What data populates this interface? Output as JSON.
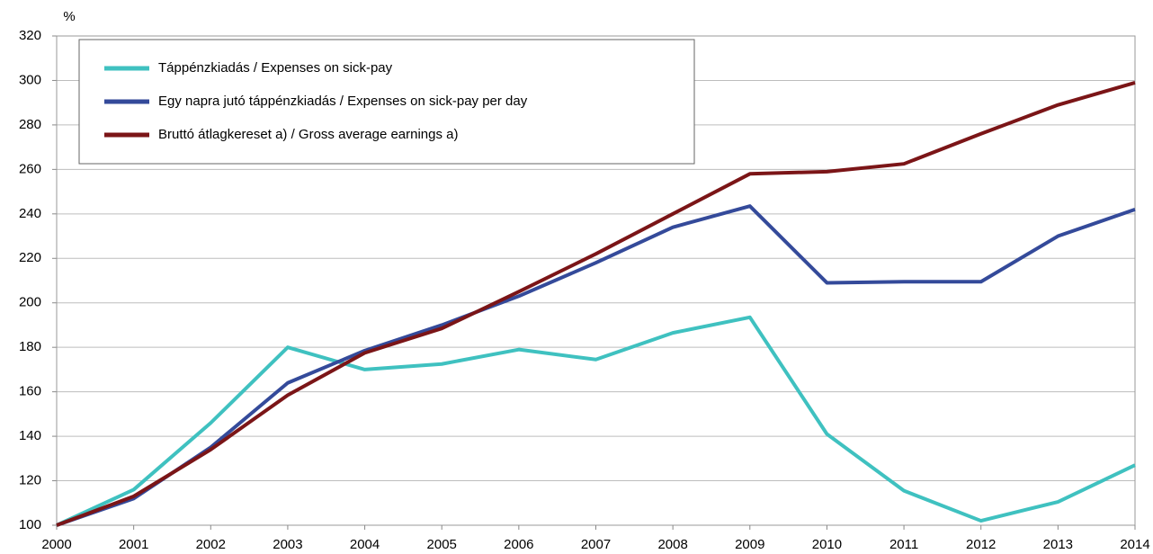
{
  "chart_data": {
    "type": "line",
    "y_label": "%",
    "x": [
      2000,
      2001,
      2002,
      2003,
      2004,
      2005,
      2006,
      2007,
      2008,
      2009,
      2010,
      2011,
      2012,
      2013,
      2014
    ],
    "xlim": [
      2000,
      2014
    ],
    "xticks": [
      2000,
      2001,
      2002,
      2003,
      2004,
      2005,
      2006,
      2007,
      2008,
      2009,
      2010,
      2011,
      2012,
      2013,
      2014
    ],
    "ylim": [
      100,
      320
    ],
    "yticks": [
      100,
      120,
      140,
      160,
      180,
      200,
      220,
      240,
      260,
      280,
      300,
      320
    ],
    "grid": true,
    "legend": "upper left",
    "series": [
      {
        "name": "Táppénzkiadás / Expenses on sick-pay",
        "color": "#3fc1c0",
        "values": [
          100,
          116,
          146,
          180,
          170,
          172.5,
          179,
          174.5,
          186.5,
          193.5,
          141,
          115.5,
          102,
          110.5,
          127
        ]
      },
      {
        "name": "Egy napra jutó táppénzkiadás / Expenses on sick-pay per day",
        "color": "#344a9a",
        "values": [
          100,
          112,
          135,
          164,
          178.5,
          190,
          203,
          218,
          234,
          243.5,
          209,
          209.5,
          209.5,
          230,
          242
        ]
      },
      {
        "name": "Bruttó átlagkereset a) / Gross average earnings a)",
        "color": "#7b1517",
        "values": [
          100,
          113,
          134,
          158.5,
          177.5,
          188.5,
          205,
          222,
          240,
          258,
          259,
          262.5,
          276,
          289,
          299
        ]
      }
    ]
  }
}
